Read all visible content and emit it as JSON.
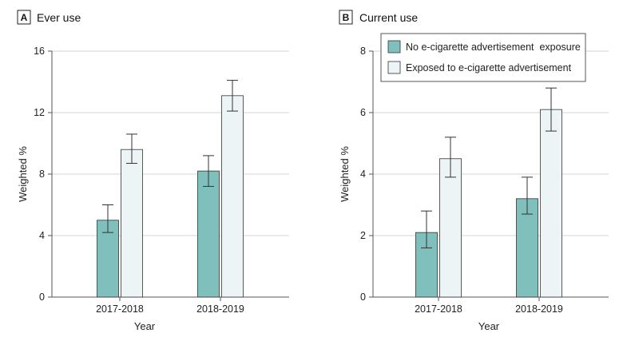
{
  "colors": {
    "no_exposure": "#7fbfbc",
    "exposed": "#edf4f5",
    "bar_stroke": "#333333",
    "grid": "#d6d6d6",
    "axis": "#555555"
  },
  "legend": {
    "items": [
      {
        "label": "No e-cigarette advertisement  exposure"
      },
      {
        "label": "Exposed to e-cigarette advertisement"
      }
    ]
  },
  "chart_data": [
    {
      "type": "bar",
      "panel_letter": "A",
      "title": "Ever use",
      "xlabel": "Year",
      "ylabel": "Weighted %",
      "ylim": [
        0,
        16
      ],
      "yticks": [
        0,
        4,
        8,
        12,
        16
      ],
      "categories": [
        "2017-2018",
        "2018-2019"
      ],
      "series": [
        {
          "name": "No e-cigarette advertisement  exposure",
          "values": [
            5.0,
            8.2
          ],
          "err_low": [
            4.2,
            7.2
          ],
          "err_high": [
            6.0,
            9.2
          ]
        },
        {
          "name": "Exposed to e-cigarette advertisement",
          "values": [
            9.6,
            13.1
          ],
          "err_low": [
            8.7,
            12.1
          ],
          "err_high": [
            10.6,
            14.1
          ]
        }
      ]
    },
    {
      "type": "bar",
      "panel_letter": "B",
      "title": "Current use",
      "xlabel": "Year",
      "ylabel": "Weighted %",
      "ylim": [
        0,
        8
      ],
      "yticks": [
        0,
        2,
        4,
        6,
        8
      ],
      "categories": [
        "2017-2018",
        "2018-2019"
      ],
      "legend_position": "top-right",
      "series": [
        {
          "name": "No e-cigarette advertisement  exposure",
          "values": [
            2.1,
            3.2
          ],
          "err_low": [
            1.6,
            2.7
          ],
          "err_high": [
            2.8,
            3.9
          ]
        },
        {
          "name": "Exposed to e-cigarette advertisement",
          "values": [
            4.5,
            6.1
          ],
          "err_low": [
            3.9,
            5.4
          ],
          "err_high": [
            5.2,
            6.8
          ]
        }
      ]
    }
  ]
}
